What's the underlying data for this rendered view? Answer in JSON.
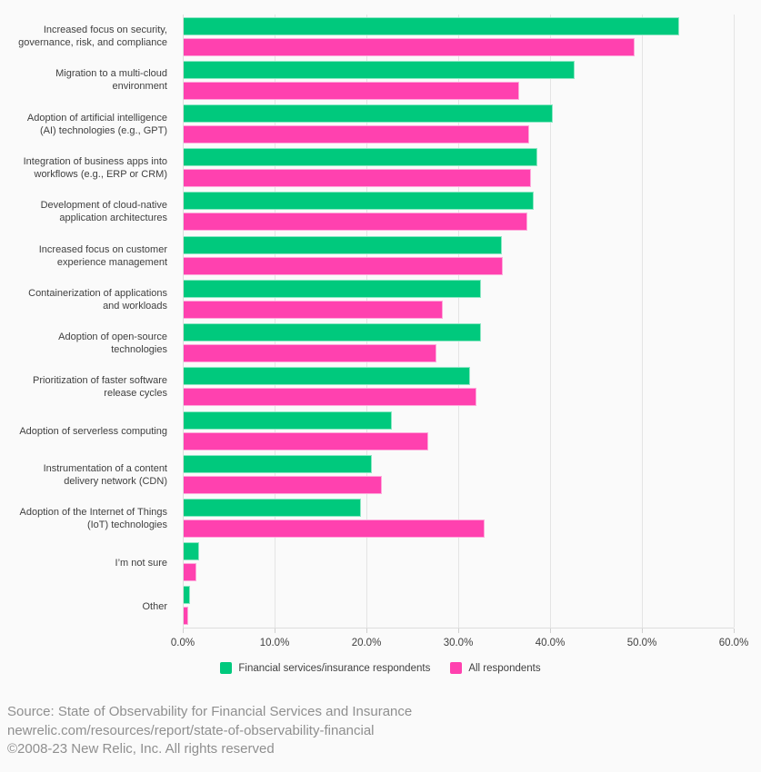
{
  "chart_data": {
    "type": "bar",
    "orientation": "horizontal",
    "title": "",
    "xlabel": "",
    "ylabel": "",
    "xlim": [
      0,
      60
    ],
    "grid": true,
    "legend_position": "bottom",
    "categories": [
      "Increased focus on security, governance, risk, and compliance",
      "Migration to a multi-cloud environment",
      "Adoption of artificial intelligence (AI) technologies (e.g., GPT)",
      "Integration of business apps into workflows (e.g., ERP or CRM)",
      "Development of cloud-native application architectures",
      "Increased focus on customer experience management",
      "Containerization of applications and workloads",
      "Adoption of open-source technologies",
      "Prioritization of faster software release cycles",
      "Adoption of serverless computing",
      "Instrumentation of a content delivery network (CDN)",
      "Adoption of the Internet of Things (IoT) technologies",
      "I’m not sure",
      "Other"
    ],
    "series": [
      {
        "name": "Financial services/insurance respondents",
        "color": "#00C97D",
        "values": [
          54.0,
          42.6,
          40.3,
          38.6,
          38.2,
          34.7,
          32.4,
          32.4,
          31.2,
          22.7,
          20.5,
          19.3,
          1.7,
          0.7
        ]
      },
      {
        "name": "All respondents",
        "color": "#FF41AF",
        "values": [
          49.2,
          36.6,
          37.7,
          37.9,
          37.5,
          34.8,
          28.3,
          27.6,
          31.9,
          26.7,
          21.6,
          32.8,
          1.4,
          0.5
        ]
      }
    ],
    "x_ticks": [
      {
        "label": "0.0%",
        "value": 0
      },
      {
        "label": "10.0%",
        "value": 10
      },
      {
        "label": "20.0%",
        "value": 20
      },
      {
        "label": "30.0%",
        "value": 30
      },
      {
        "label": "40.0%",
        "value": 40
      },
      {
        "label": "50.0%",
        "value": 50
      },
      {
        "label": "60.0%",
        "value": 60
      }
    ]
  },
  "footer": {
    "source_line": "Source: State of Observability for Financial Services and Insurance",
    "url_line": "newrelic.com/resources/report/state-of-observability-financial",
    "copyright_line": "©2008-23 New Relic, Inc. All rights reserved"
  }
}
